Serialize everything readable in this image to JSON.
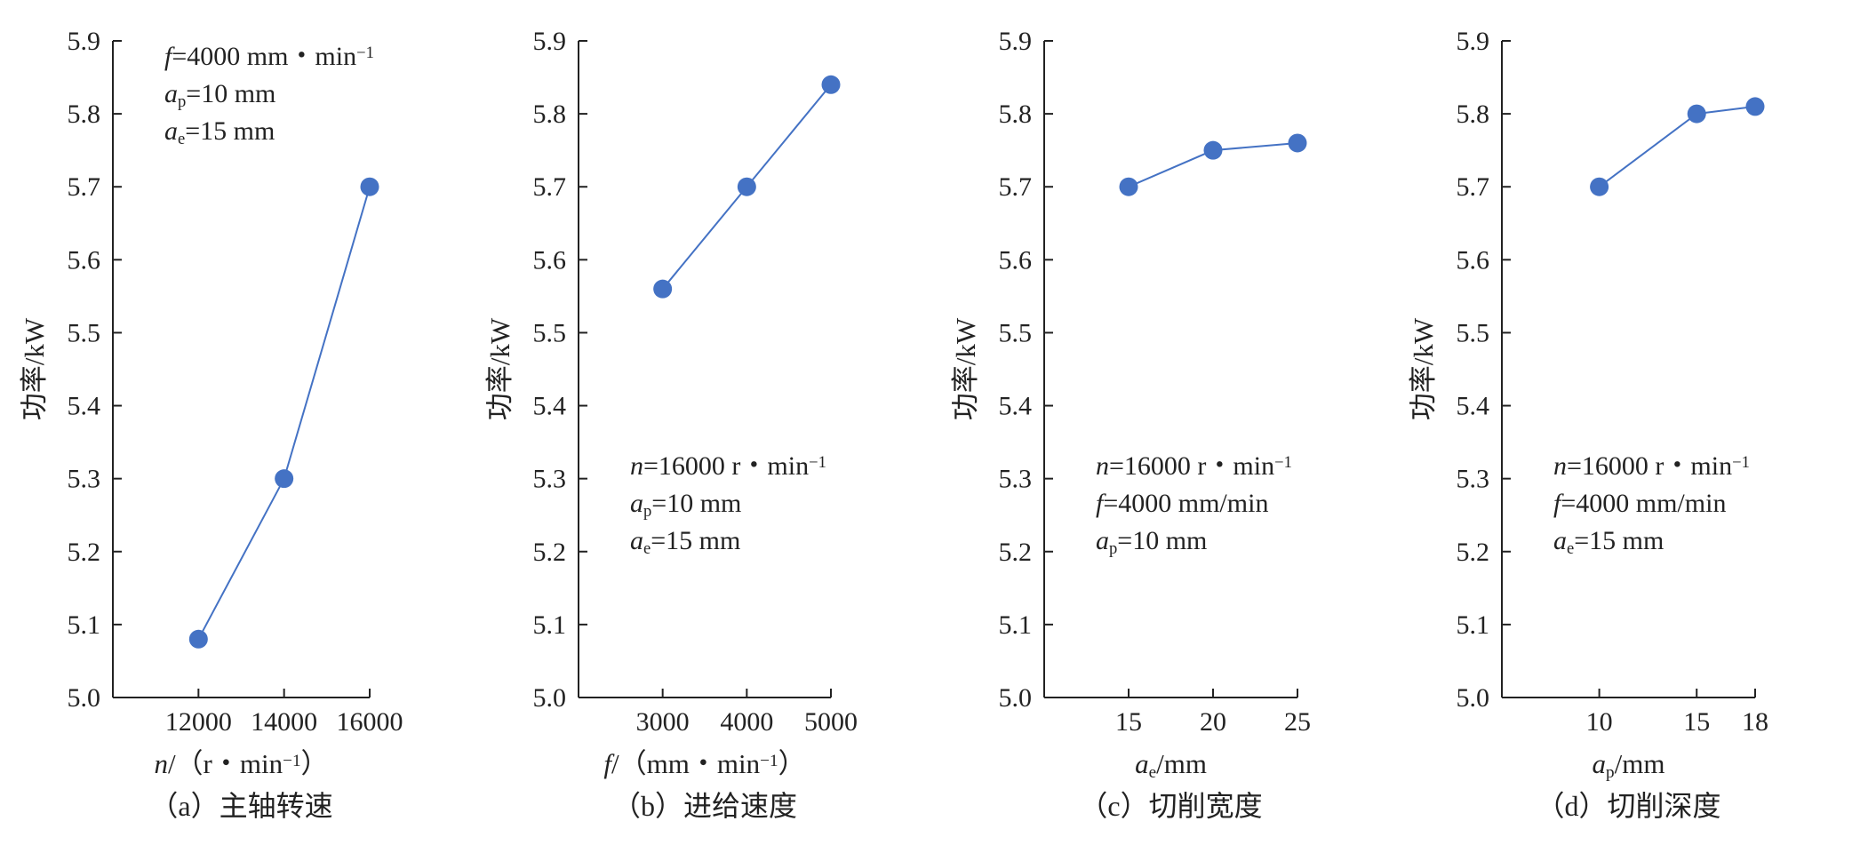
{
  "chart_data": [
    {
      "type": "line",
      "caption": "（a）主轴转速",
      "ylabel": "功率/kW",
      "xlabel_parts": [
        {
          "t": "n",
          "i": true,
          "s": null
        },
        {
          "t": "/（r・min",
          "i": false,
          "s": null
        },
        {
          "t": "−1",
          "i": false,
          "s": "sup"
        },
        {
          "t": "）",
          "i": false,
          "s": null
        }
      ],
      "ylim": [
        5.0,
        5.9
      ],
      "yticks": [
        "5.0",
        "5.1",
        "5.2",
        "5.3",
        "5.4",
        "5.5",
        "5.6",
        "5.7",
        "5.8",
        "5.9"
      ],
      "xlim": [
        10000,
        16000
      ],
      "xticks": [
        {
          "value": 12000,
          "label": "12000"
        },
        {
          "value": 14000,
          "label": "14000"
        },
        {
          "value": 16000,
          "label": "16000"
        }
      ],
      "x": [
        12000,
        14000,
        16000
      ],
      "y": [
        5.08,
        5.3,
        5.7
      ],
      "annotation_position": "top",
      "annotations": [
        [
          {
            "t": "f",
            "i": true,
            "s": null
          },
          {
            "t": "=4000 mm・min",
            "i": false,
            "s": null
          },
          {
            "t": "−1",
            "i": false,
            "s": "sup"
          }
        ],
        [
          {
            "t": "a",
            "i": true,
            "s": null
          },
          {
            "t": "p",
            "i": false,
            "s": "sub"
          },
          {
            "t": "=10 mm",
            "i": false,
            "s": null
          }
        ],
        [
          {
            "t": "a",
            "i": true,
            "s": null
          },
          {
            "t": "e",
            "i": false,
            "s": "sub"
          },
          {
            "t": "=15 mm",
            "i": false,
            "s": null
          }
        ]
      ]
    },
    {
      "type": "line",
      "caption": "（b）进给速度",
      "ylabel": "功率/kW",
      "xlabel_parts": [
        {
          "t": "f",
          "i": true,
          "s": null
        },
        {
          "t": "/（mm・min",
          "i": false,
          "s": null
        },
        {
          "t": "−1",
          "i": false,
          "s": "sup"
        },
        {
          "t": "）",
          "i": false,
          "s": null
        }
      ],
      "ylim": [
        5.0,
        5.9
      ],
      "yticks": [
        "5.0",
        "5.1",
        "5.2",
        "5.3",
        "5.4",
        "5.5",
        "5.6",
        "5.7",
        "5.8",
        "5.9"
      ],
      "xlim": [
        2000,
        5000
      ],
      "xticks": [
        {
          "value": 3000,
          "label": "3000"
        },
        {
          "value": 4000,
          "label": "4000"
        },
        {
          "value": 5000,
          "label": "5000"
        }
      ],
      "x": [
        3000,
        4000,
        5000
      ],
      "y": [
        5.56,
        5.7,
        5.84
      ],
      "annotation_position": "bottom",
      "annotations": [
        [
          {
            "t": "n",
            "i": true,
            "s": null
          },
          {
            "t": "=16000 r・min",
            "i": false,
            "s": null
          },
          {
            "t": "−1",
            "i": false,
            "s": "sup"
          }
        ],
        [
          {
            "t": "a",
            "i": true,
            "s": null
          },
          {
            "t": "p",
            "i": false,
            "s": "sub"
          },
          {
            "t": "=10 mm",
            "i": false,
            "s": null
          }
        ],
        [
          {
            "t": "a",
            "i": true,
            "s": null
          },
          {
            "t": "e",
            "i": false,
            "s": "sub"
          },
          {
            "t": "=15 mm",
            "i": false,
            "s": null
          }
        ]
      ]
    },
    {
      "type": "line",
      "caption": "（c）切削宽度",
      "ylabel": "功率/kW",
      "xlabel_parts": [
        {
          "t": "a",
          "i": true,
          "s": null
        },
        {
          "t": "e",
          "i": false,
          "s": "sub"
        },
        {
          "t": "/mm",
          "i": false,
          "s": null
        }
      ],
      "ylim": [
        5.0,
        5.9
      ],
      "yticks": [
        "5.0",
        "5.1",
        "5.2",
        "5.3",
        "5.4",
        "5.5",
        "5.6",
        "5.7",
        "5.8",
        "5.9"
      ],
      "xlim": [
        10,
        25
      ],
      "xticks": [
        {
          "value": 15,
          "label": "15"
        },
        {
          "value": 20,
          "label": "20"
        },
        {
          "value": 25,
          "label": "25"
        }
      ],
      "x": [
        15,
        20,
        25
      ],
      "y": [
        5.7,
        5.75,
        5.76
      ],
      "annotation_position": "bottom",
      "annotations": [
        [
          {
            "t": "n",
            "i": true,
            "s": null
          },
          {
            "t": "=16000 r・min",
            "i": false,
            "s": null
          },
          {
            "t": "−1",
            "i": false,
            "s": "sup"
          }
        ],
        [
          {
            "t": "f",
            "i": true,
            "s": null
          },
          {
            "t": "=4000 mm/min",
            "i": false,
            "s": null
          }
        ],
        [
          {
            "t": "a",
            "i": true,
            "s": null
          },
          {
            "t": "p",
            "i": false,
            "s": "sub"
          },
          {
            "t": "=10 mm",
            "i": false,
            "s": null
          }
        ]
      ]
    },
    {
      "type": "line",
      "caption": "（d）切削深度",
      "ylabel": "功率/kW",
      "xlabel_parts": [
        {
          "t": "a",
          "i": true,
          "s": null
        },
        {
          "t": "p",
          "i": false,
          "s": "sub"
        },
        {
          "t": "/mm",
          "i": false,
          "s": null
        }
      ],
      "ylim": [
        5.0,
        5.9
      ],
      "yticks": [
        "5.0",
        "5.1",
        "5.2",
        "5.3",
        "5.4",
        "5.5",
        "5.6",
        "5.7",
        "5.8",
        "5.9"
      ],
      "xlim": [
        5,
        18
      ],
      "xticks": [
        {
          "value": 10,
          "label": "10"
        },
        {
          "value": 15,
          "label": "15"
        },
        {
          "value": 18,
          "label": "18"
        }
      ],
      "x": [
        10,
        15,
        18
      ],
      "y": [
        5.7,
        5.8,
        5.81
      ],
      "annotation_position": "bottom",
      "annotations": [
        [
          {
            "t": "n",
            "i": true,
            "s": null
          },
          {
            "t": "=16000 r・min",
            "i": false,
            "s": null
          },
          {
            "t": "−1",
            "i": false,
            "s": "sup"
          }
        ],
        [
          {
            "t": "f",
            "i": true,
            "s": null
          },
          {
            "t": "=4000 mm/min",
            "i": false,
            "s": null
          }
        ],
        [
          {
            "t": "a",
            "i": true,
            "s": null
          },
          {
            "t": "e",
            "i": false,
            "s": "sub"
          },
          {
            "t": "=15 mm",
            "i": false,
            "s": null
          }
        ]
      ]
    }
  ],
  "style": {
    "line_color": "#4472c4",
    "marker_color": "#4472c4",
    "axis_color": "#222222"
  }
}
